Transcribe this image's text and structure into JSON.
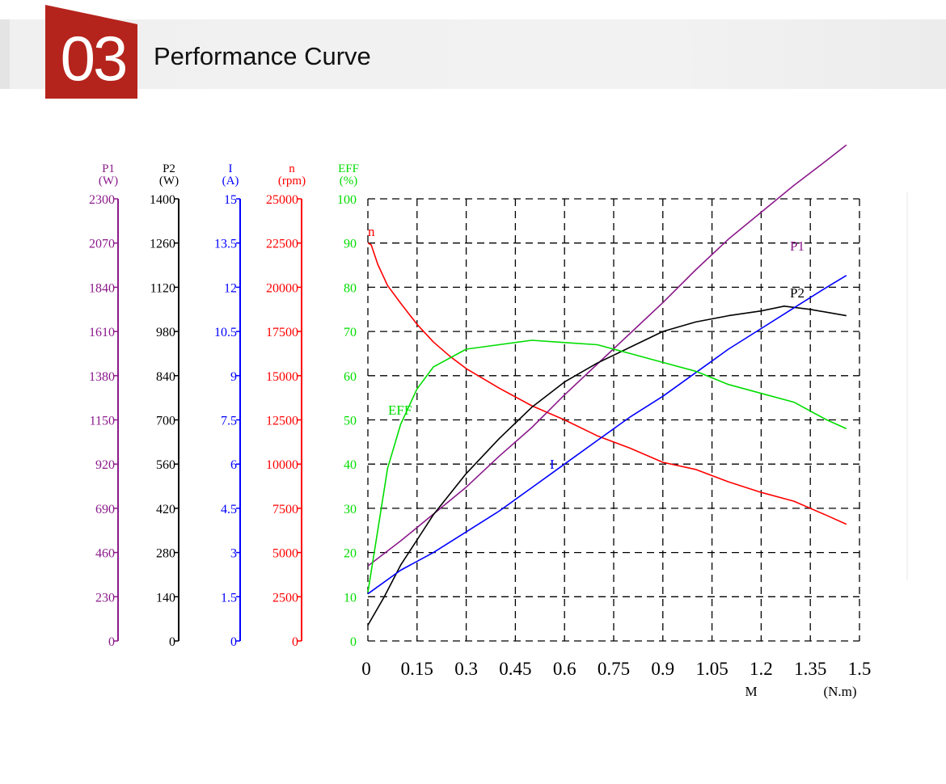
{
  "header": {
    "section_number": "03",
    "section_title": "Performance Curve"
  },
  "colors": {
    "badge": "#b5241c",
    "p1": "#8b1a8b",
    "p2": "#000000",
    "i": "#0000ff",
    "n": "#ff0000",
    "eff": "#00dd00"
  },
  "chart_data": {
    "type": "line",
    "grid": true,
    "x_axis": {
      "label": "M",
      "unit": "(N.m)",
      "range": [
        0,
        1.5
      ],
      "tick_labels": [
        "0",
        "0.15",
        "0.3",
        "0.45",
        "0.6",
        "0.75",
        "0.9",
        "1.05",
        "1.2",
        "1.35",
        "1.5"
      ]
    },
    "y_axes": [
      {
        "key": "p1",
        "name": "P1",
        "unit": "(W)",
        "color": "#8b1a8b",
        "range": [
          0,
          2300
        ],
        "tick_labels": [
          "0",
          "230",
          "460",
          "690",
          "920",
          "1150",
          "1380",
          "1610",
          "1840",
          "2070",
          "2300"
        ]
      },
      {
        "key": "p2",
        "name": "P2",
        "unit": "(W)",
        "color": "#000000",
        "range": [
          0,
          1400
        ],
        "tick_labels": [
          "0",
          "140",
          "280",
          "420",
          "560",
          "700",
          "840",
          "980",
          "1120",
          "1260",
          "1400"
        ]
      },
      {
        "key": "i",
        "name": "I",
        "unit": "(A)",
        "color": "#0000ff",
        "range": [
          0,
          15
        ],
        "tick_labels": [
          "0",
          "1.5",
          "3",
          "4.5",
          "6",
          "7.5",
          "9",
          "10.5",
          "12",
          "13.5",
          "15"
        ]
      },
      {
        "key": "n",
        "name": "n",
        "unit": "(rpm)",
        "color": "#ff0000",
        "range": [
          0,
          25000
        ],
        "tick_labels": [
          "0",
          "2500",
          "5000",
          "7500",
          "10000",
          "12500",
          "15000",
          "17500",
          "20000",
          "22500",
          "25000"
        ]
      },
      {
        "key": "eff",
        "name": "EFF",
        "unit": "(%)",
        "color": "#00dd00",
        "range": [
          0,
          100
        ],
        "tick_labels": [
          "0",
          "10",
          "20",
          "30",
          "40",
          "50",
          "60",
          "70",
          "80",
          "90",
          "100"
        ]
      }
    ],
    "series": [
      {
        "name": "n",
        "axis": "n",
        "color": "#ff0000",
        "x": [
          0,
          0.01,
          0.03,
          0.06,
          0.1,
          0.15,
          0.2,
          0.25,
          0.3,
          0.4,
          0.5,
          0.6,
          0.7,
          0.8,
          0.9,
          1.0,
          1.1,
          1.2,
          1.3,
          1.4,
          1.46
        ],
        "y": [
          22500,
          22400,
          21300,
          20100,
          19100,
          17900,
          16900,
          16100,
          15400,
          14300,
          13300,
          12500,
          11600,
          10900,
          10100,
          9700,
          9000,
          8400,
          7900,
          7100,
          6600
        ]
      },
      {
        "name": "P1",
        "axis": "p1",
        "color": "#8b1a8b",
        "x": [
          0,
          0.1,
          0.2,
          0.3,
          0.4,
          0.5,
          0.6,
          0.7,
          0.8,
          0.9,
          1.0,
          1.1,
          1.2,
          1.3,
          1.4,
          1.46
        ],
        "y": [
          390,
          520,
          660,
          800,
          960,
          1110,
          1280,
          1440,
          1600,
          1760,
          1930,
          2090,
          2230,
          2370,
          2500,
          2580
        ]
      },
      {
        "name": "P2",
        "axis": "p2",
        "color": "#000000",
        "x": [
          0,
          0.05,
          0.1,
          0.15,
          0.2,
          0.3,
          0.4,
          0.5,
          0.6,
          0.7,
          0.8,
          0.9,
          1.0,
          1.05,
          1.1,
          1.2,
          1.27,
          1.35,
          1.46
        ],
        "y": [
          50,
          140,
          240,
          320,
          400,
          530,
          640,
          740,
          820,
          880,
          930,
          980,
          1010,
          1020,
          1030,
          1045,
          1060,
          1050,
          1030
        ]
      },
      {
        "name": "I",
        "axis": "i",
        "color": "#0000ff",
        "x": [
          0,
          0.1,
          0.2,
          0.3,
          0.4,
          0.5,
          0.6,
          0.7,
          0.8,
          0.9,
          1.0,
          1.1,
          1.2,
          1.3,
          1.4,
          1.46
        ],
        "y": [
          1.6,
          2.4,
          3.0,
          3.7,
          4.4,
          5.2,
          6.0,
          6.8,
          7.6,
          8.3,
          9.1,
          9.9,
          10.6,
          11.3,
          12.0,
          12.4
        ]
      },
      {
        "name": "EFF",
        "axis": "eff",
        "color": "#00dd00",
        "x": [
          0,
          0.03,
          0.06,
          0.1,
          0.15,
          0.2,
          0.3,
          0.4,
          0.5,
          0.6,
          0.7,
          0.8,
          0.9,
          1.0,
          1.1,
          1.15,
          1.2,
          1.3,
          1.4,
          1.46
        ],
        "y": [
          11,
          25,
          39,
          49,
          57,
          62,
          66,
          67,
          68,
          67.5,
          67,
          65,
          63,
          61,
          58,
          57,
          56,
          54,
          50,
          48
        ]
      }
    ]
  }
}
